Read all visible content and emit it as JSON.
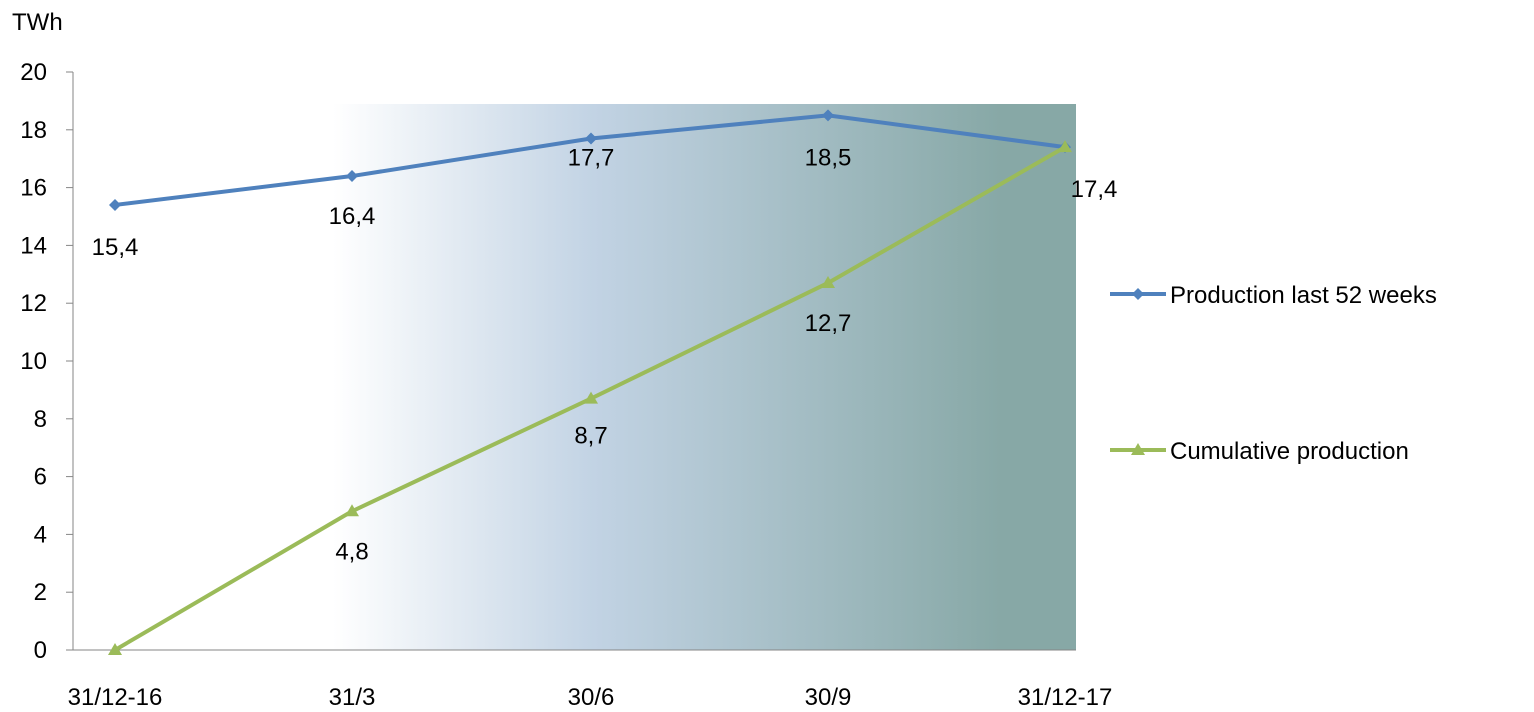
{
  "chart_data": {
    "type": "line",
    "unit_label": "TWh",
    "categories": [
      "31/12-16",
      "31/3",
      "30/6",
      "30/9",
      "31/12-17"
    ],
    "ylim": [
      0,
      20
    ],
    "yticks": [
      "0",
      "2",
      "4",
      "6",
      "8",
      "10",
      "12",
      "14",
      "16",
      "18",
      "20"
    ],
    "grid": false,
    "legend_position": "right",
    "background_gradient": {
      "from": "#ffffff",
      "to": "#87a8a6"
    },
    "series": [
      {
        "name": "Production last 52 weeks",
        "color": "#4f81bd",
        "marker": "diamond",
        "values": [
          15.4,
          16.4,
          17.7,
          18.5,
          17.4
        ],
        "labels": [
          "15,4",
          "16,4",
          "17,7",
          "18,5",
          "17,4"
        ]
      },
      {
        "name": "Cumulative production",
        "color": "#9bbb59",
        "marker": "triangle",
        "values": [
          0,
          4.8,
          8.7,
          12.7,
          17.4
        ],
        "labels": [
          "",
          "4,8",
          "8,7",
          "12,7",
          ""
        ]
      }
    ]
  }
}
